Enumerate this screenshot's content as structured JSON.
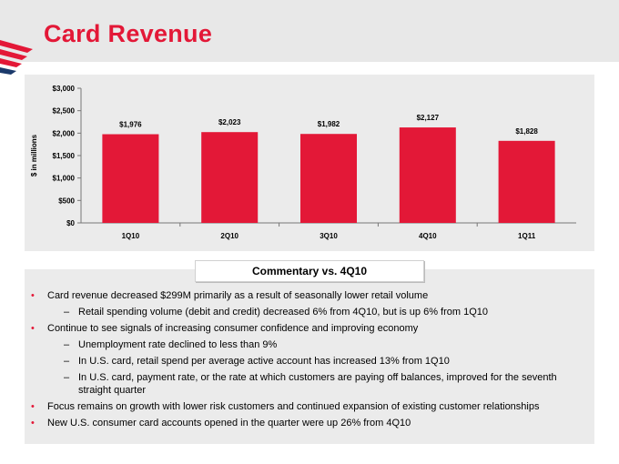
{
  "header": {
    "title": "Card Revenue",
    "logo_icon": "flagscape-logo-icon",
    "brand_color": "#e31837"
  },
  "chart_data": {
    "type": "bar",
    "categories": [
      "1Q10",
      "2Q10",
      "3Q10",
      "4Q10",
      "1Q11"
    ],
    "values": [
      1976,
      2023,
      1982,
      2127,
      1828
    ],
    "data_labels": [
      "$1,976",
      "$2,023",
      "$1,982",
      "$2,127",
      "$1,828"
    ],
    "yticks": [
      0,
      500,
      1000,
      1500,
      2000,
      2500,
      3000
    ],
    "ytick_labels": [
      "$0",
      "$500",
      "$1,000",
      "$1,500",
      "$2,000",
      "$2,500",
      "$3,000"
    ],
    "ylim": [
      0,
      3000
    ],
    "ylabel": "$ in millions",
    "xlabel": "",
    "title": "",
    "grid": false,
    "bar_color": "#e31837"
  },
  "commentary": {
    "title": "Commentary vs. 4Q10",
    "bullets": [
      {
        "level": 1,
        "text": "Card revenue decreased $299M primarily as a result of seasonally lower retail volume"
      },
      {
        "level": 2,
        "text": "Retail spending volume (debit and credit) decreased 6% from 4Q10, but is up 6% from 1Q10"
      },
      {
        "level": 1,
        "text": "Continue to see signals of increasing consumer confidence and improving economy"
      },
      {
        "level": 2,
        "text": "Unemployment rate declined to less than 9%"
      },
      {
        "level": 2,
        "text": "In U.S. card, retail spend per average active account has increased 13% from 1Q10"
      },
      {
        "level": 2,
        "text": "In U.S. card, payment rate, or the rate at which customers are paying off balances, improved for the seventh straight quarter"
      },
      {
        "level": 1,
        "text": "Focus remains on growth with lower risk customers and continued expansion of existing customer relationships"
      },
      {
        "level": 1,
        "text": "New U.S. consumer card accounts opened in the quarter were up 26% from 4Q10"
      }
    ]
  }
}
